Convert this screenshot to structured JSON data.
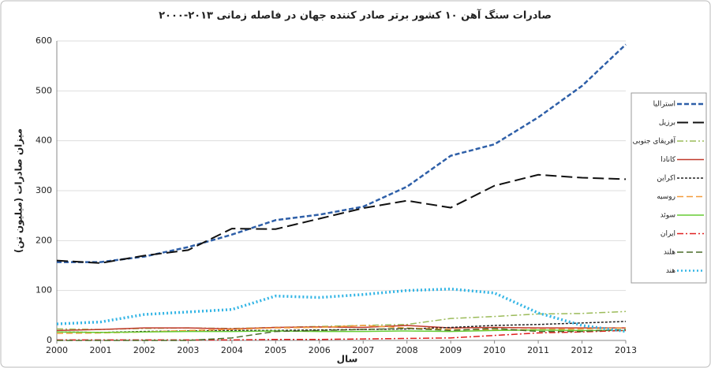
{
  "chart_data": {
    "type": "line",
    "title": "صادرات سنگ آهن ۱۰ کشور برتر صادر کننده جهان در فاصله زمانی ۲۰۱۳-۲۰۰۰",
    "x_label": "سال",
    "y_label": "میزان صادرات (میلیون تن)",
    "x": [
      2000,
      2001,
      2002,
      2003,
      2004,
      2005,
      2006,
      2007,
      2008,
      2009,
      2010,
      2011,
      2012,
      2013
    ],
    "xlim": [
      2000,
      2013
    ],
    "xticks": [
      2000,
      2001,
      2002,
      2003,
      2004,
      2005,
      2006,
      2007,
      2008,
      2009,
      2010,
      2011,
      2012,
      2013
    ],
    "ylim": [
      0,
      600
    ],
    "yticks": [
      0,
      100,
      200,
      300,
      400,
      500,
      600
    ],
    "grid": true,
    "legend": "right",
    "series": [
      {
        "name": "استرالیا",
        "color": "#2e5fa8",
        "dash": "6,3",
        "width": 2.5,
        "values": [
          157,
          157,
          168,
          187,
          212,
          241,
          252,
          268,
          308,
          370,
          393,
          447,
          510,
          593
        ]
      },
      {
        "name": "برزیل",
        "color": "#111111",
        "dash": "14,6",
        "width": 2,
        "values": [
          160,
          155,
          170,
          181,
          224,
          223,
          244,
          265,
          280,
          266,
          310,
          332,
          326,
          323
        ]
      },
      {
        "name": "آفریقای جنوبی",
        "color": "#9bbb59",
        "dash": "8,3,2,3",
        "width": 1.5,
        "values": [
          23,
          22,
          24,
          25,
          24,
          26,
          28,
          30,
          32,
          44,
          48,
          53,
          54,
          58
        ]
      },
      {
        "name": "کانادا",
        "color": "#c0392b",
        "dash": "none",
        "width": 1.5,
        "values": [
          20,
          22,
          25,
          25,
          23,
          26,
          27,
          26,
          30,
          25,
          26,
          25,
          25,
          25
        ]
      },
      {
        "name": "اکراین",
        "color": "#222222",
        "dash": "3,2",
        "width": 1.5,
        "values": [
          17,
          16,
          18,
          19,
          20,
          20,
          21,
          22,
          23,
          26,
          30,
          32,
          35,
          38
        ]
      },
      {
        "name": "روسیه",
        "color": "#f39c3c",
        "dash": "8,4",
        "width": 1.5,
        "values": [
          14,
          15,
          17,
          20,
          22,
          25,
          26,
          30,
          25,
          22,
          21,
          22,
          23,
          25
        ]
      },
      {
        "name": "سوئد",
        "color": "#66cc33",
        "dash": "none",
        "width": 1.5,
        "values": [
          17,
          16,
          17,
          18,
          18,
          19,
          18,
          18,
          19,
          18,
          20,
          21,
          20,
          20
        ]
      },
      {
        "name": "ایران",
        "color": "#e02020",
        "dash": "8,3,2,3",
        "width": 1.5,
        "values": [
          1,
          1,
          1,
          1,
          1,
          2,
          2,
          3,
          4,
          5,
          10,
          15,
          17,
          20
        ]
      },
      {
        "name": "هلند",
        "color": "#4a6b2a",
        "dash": "8,4",
        "width": 1.5,
        "values": [
          0,
          0,
          0,
          0,
          5,
          18,
          20,
          22,
          24,
          20,
          24,
          18,
          18,
          22
        ]
      },
      {
        "name": "هند",
        "color": "#33b5e5",
        "dash": "2,3",
        "width": 3.5,
        "values": [
          33,
          37,
          52,
          57,
          62,
          89,
          86,
          92,
          100,
          103,
          95,
          55,
          30,
          18
        ]
      }
    ]
  }
}
